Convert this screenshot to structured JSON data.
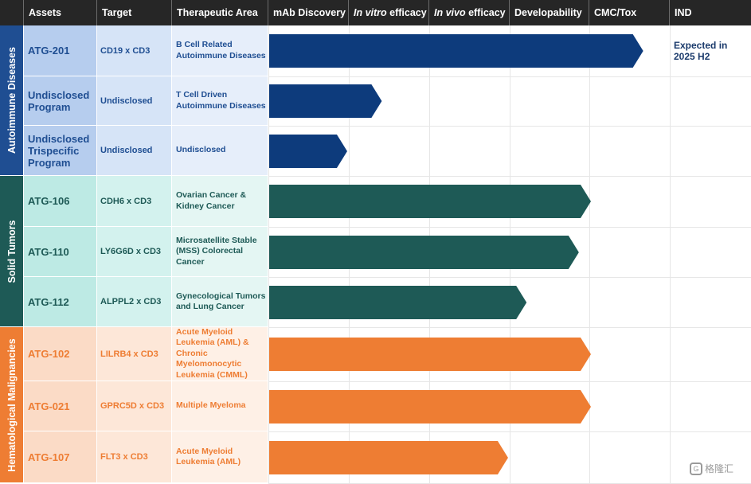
{
  "headers": {
    "assets": "Assets",
    "target": "Target",
    "area": "Therapeutic Area",
    "stage1": "mAb Discovery",
    "stage2_italic": "In vitro",
    "stage2_rest": " efficacy",
    "stage3_italic": "In vivo",
    "stage3_rest": " efficacy",
    "stage4": "Developability",
    "stage5": "CMC/Tox",
    "stage6": "IND"
  },
  "groups": [
    {
      "label": "Autoimmune Diseases",
      "color": "#1f4e92"
    },
    {
      "label": "Solid Tumors",
      "color": "#1e5a56"
    },
    {
      "label": "Hematological Malignancies",
      "color": "#ee7d33"
    }
  ],
  "rows": [
    {
      "asset": "ATG-201",
      "target": "CD19 x CD3",
      "area": "B Cell Related Autoimmune Diseases",
      "stage_progress": 4.65,
      "color": "#0d3b7c",
      "text_color": "#1f4e92"
    },
    {
      "asset": "Undisclosed Program",
      "target": "Undisclosed",
      "area": "T Cell Driven Autoimmune Diseases",
      "stage_progress": 1.4,
      "color": "#0d3b7c",
      "text_color": "#1f4e92"
    },
    {
      "asset": "Undisclosed Trispecific Program",
      "target": "Undisclosed",
      "area": "Undisclosed",
      "stage_progress": 0.97,
      "color": "#0d3b7c",
      "text_color": "#1f4e92"
    },
    {
      "asset": "ATG-106",
      "target": "CDH6 x CD3",
      "area": "Ovarian Cancer & Kidney Cancer",
      "stage_progress": 4.0,
      "color": "#1e5a56",
      "text_color": "#1e5a56"
    },
    {
      "asset": "ATG-110",
      "target": "LY6G6D x CD3",
      "area": "Microsatellite Stable (MSS) Colorectal Cancer",
      "stage_progress": 3.85,
      "color": "#1e5a56",
      "text_color": "#1e5a56"
    },
    {
      "asset": "ATG-112",
      "target": "ALPPL2 x CD3",
      "area": "Gynecological Tumors and Lung Cancer",
      "stage_progress": 3.2,
      "color": "#1e5a56",
      "text_color": "#1e5a56"
    },
    {
      "asset": "ATG-102",
      "target": "LILRB4 x CD3",
      "area": "Acute Myeloid Leukemia (AML) & Chronic Myelomonocytic Leukemia (CMML)",
      "stage_progress": 4.0,
      "color": "#ee7d33",
      "text_color": "#ee7d33"
    },
    {
      "asset": "ATG-021",
      "target": "GPRC5D x CD3",
      "area": "Multiple Myeloma",
      "stage_progress": 4.0,
      "color": "#ee7d33",
      "text_color": "#ee7d33"
    },
    {
      "asset": "ATG-107",
      "target": "FLT3 x CD3",
      "area": "Acute Myeloid Leukemia (AML)",
      "stage_progress": 2.97,
      "color": "#ee7d33",
      "text_color": "#ee7d33"
    }
  ],
  "ind_note": "Expected in 2025 H2",
  "watermark": "格隆汇"
}
